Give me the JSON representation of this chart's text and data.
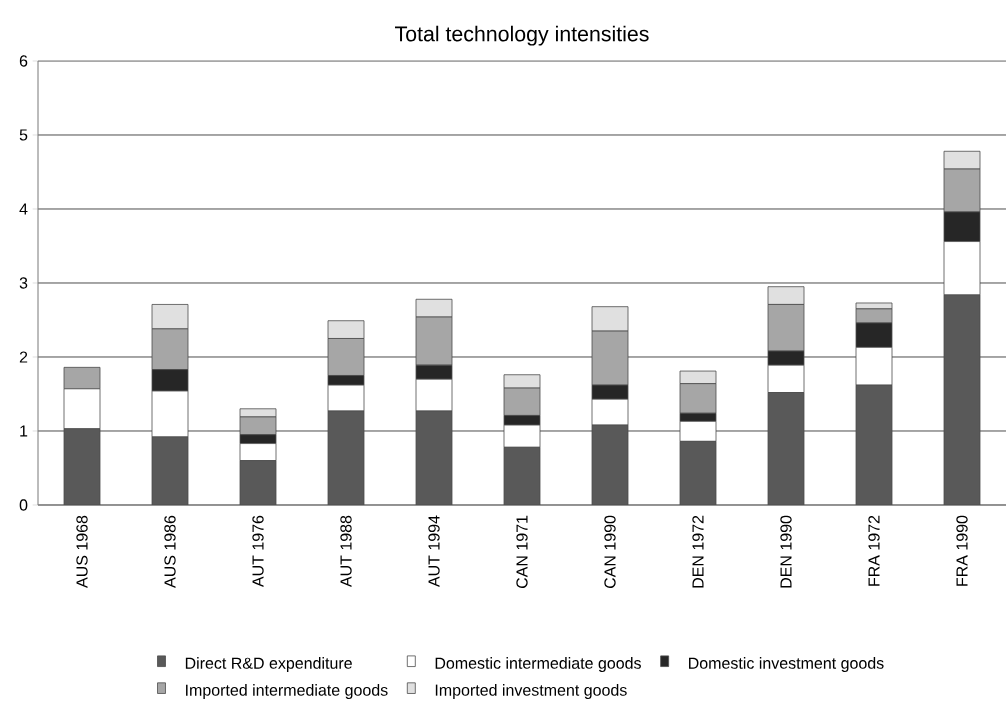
{
  "chart_data": {
    "type": "bar",
    "title": "Total technology intensities",
    "stacked": true,
    "categories": [
      "AUS 1968",
      "AUS 1986",
      "AUT 1976",
      "AUT 1988",
      "AUT 1994",
      "CAN 1971",
      "CAN 1990",
      "DEN 1972",
      "DEN 1990",
      "FRA 1972",
      "FRA 1990"
    ],
    "series": [
      {
        "name": "Direct R&D expenditure",
        "color": "#595959",
        "values": [
          1.03,
          0.92,
          0.6,
          1.27,
          1.27,
          0.78,
          1.08,
          0.86,
          1.52,
          1.62,
          2.84
        ]
      },
      {
        "name": "Domestic intermediate goods",
        "color": "#ffffff",
        "values": [
          0.54,
          0.62,
          0.23,
          0.35,
          0.43,
          0.3,
          0.35,
          0.27,
          0.37,
          0.51,
          0.72
        ]
      },
      {
        "name": "Domestic investment goods",
        "color": "#262626",
        "values": [
          0,
          0.29,
          0.12,
          0.13,
          0.19,
          0.13,
          0.19,
          0.11,
          0.19,
          0.33,
          0.4
        ]
      },
      {
        "name": "Imported intermediate goods",
        "color": "#a6a6a6",
        "values": [
          0.29,
          0.55,
          0.24,
          0.5,
          0.65,
          0.37,
          0.73,
          0.4,
          0.63,
          0.19,
          0.58
        ]
      },
      {
        "name": "Imported investment goods",
        "color": "#e0e0e0",
        "values": [
          0,
          0.33,
          0.11,
          0.24,
          0.24,
          0.18,
          0.33,
          0.17,
          0.24,
          0.08,
          0.24
        ]
      }
    ],
    "ylim": [
      0,
      6
    ],
    "yticks": [
      0,
      1,
      2,
      3,
      4,
      5,
      6
    ],
    "grid": "y",
    "legend": "bottom"
  }
}
